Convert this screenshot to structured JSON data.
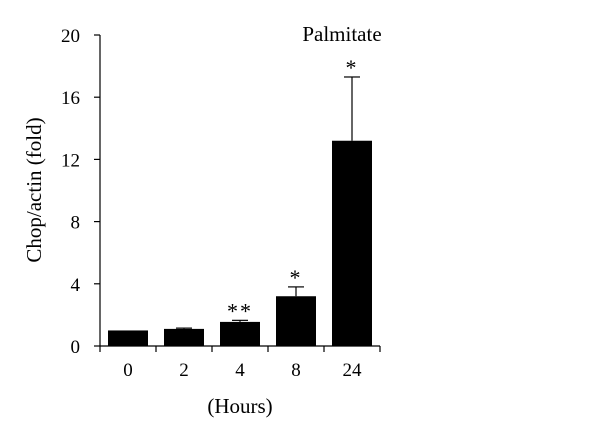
{
  "chart_data": {
    "type": "bar",
    "title": "Palmitate",
    "xlabel": "(Hours)",
    "ylabel": "Chop/actin (fold)",
    "categories": [
      "0",
      "2",
      "4",
      "8",
      "24"
    ],
    "values": [
      1.0,
      1.1,
      1.55,
      3.2,
      13.2
    ],
    "errors": [
      0.0,
      0.05,
      0.1,
      0.6,
      4.1
    ],
    "annotations": [
      "",
      "",
      "**",
      "*",
      "*"
    ],
    "ylim": [
      0,
      20
    ],
    "yticks": [
      0,
      4,
      8,
      12,
      16,
      20
    ],
    "bar_color": "#000000",
    "grid": false,
    "legend": "none"
  }
}
